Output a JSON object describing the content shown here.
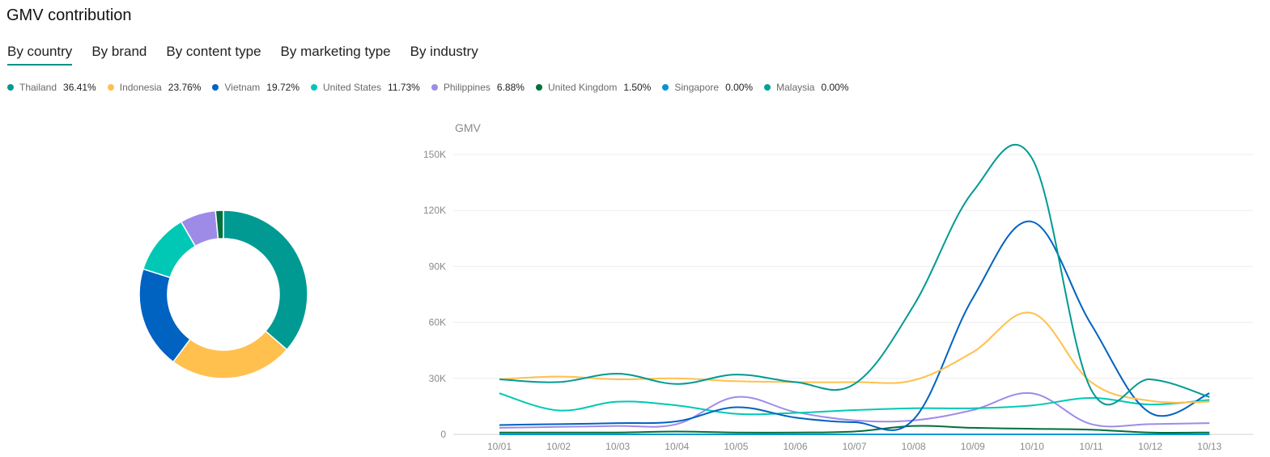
{
  "title": "GMV contribution",
  "tabs": [
    {
      "label": "By country",
      "active": true
    },
    {
      "label": "By brand",
      "active": false
    },
    {
      "label": "By content type",
      "active": false
    },
    {
      "label": "By marketing type",
      "active": false
    },
    {
      "label": "By industry",
      "active": false
    }
  ],
  "legend": [
    {
      "name": "Thailand",
      "pct": "36.41%",
      "color": "#009a93"
    },
    {
      "name": "Indonesia",
      "pct": "23.76%",
      "color": "#ffc04d"
    },
    {
      "name": "Vietnam",
      "pct": "19.72%",
      "color": "#0062c1"
    },
    {
      "name": "United States",
      "pct": "11.73%",
      "color": "#00c8b5"
    },
    {
      "name": "Philippines",
      "pct": "6.88%",
      "color": "#9e8be8"
    },
    {
      "name": "United Kingdom",
      "pct": "1.50%",
      "color": "#00703c"
    },
    {
      "name": "Singapore",
      "pct": "0.00%",
      "color": "#0095d6"
    },
    {
      "name": "Malaysia",
      "pct": "0.00%",
      "color": "#00a396"
    }
  ],
  "chart_data": [
    {
      "type": "pie",
      "donut": true,
      "labels": [
        "Thailand",
        "Indonesia",
        "Vietnam",
        "United States",
        "Philippines",
        "United Kingdom",
        "Singapore",
        "Malaysia"
      ],
      "values": [
        36.41,
        23.76,
        19.72,
        11.73,
        6.88,
        1.5,
        0.0,
        0.0
      ],
      "colors": [
        "#009a93",
        "#ffc04d",
        "#0062c1",
        "#00c8b5",
        "#9e8be8",
        "#00703c",
        "#0095d6",
        "#00a396"
      ]
    },
    {
      "type": "line",
      "ylabel": "GMV",
      "ylim": [
        0,
        150000
      ],
      "yticks": [
        0,
        30000,
        60000,
        90000,
        120000,
        150000
      ],
      "ytick_labels": [
        "0",
        "30K",
        "60K",
        "90K",
        "120K",
        "150K"
      ],
      "categories": [
        "10/01",
        "10/02",
        "10/03",
        "10/04",
        "10/05",
        "10/06",
        "10/07",
        "10/08",
        "10/09",
        "10/10",
        "10/11",
        "10/12",
        "10/13"
      ],
      "grid": true,
      "smooth": true,
      "series": [
        {
          "name": "Thailand",
          "color": "#009a93",
          "values": [
            29500,
            28000,
            32500,
            27000,
            32000,
            28000,
            27000,
            69000,
            130000,
            148000,
            24000,
            29500,
            20000
          ]
        },
        {
          "name": "Indonesia",
          "color": "#ffc04d",
          "values": [
            29500,
            31000,
            29500,
            30000,
            28500,
            28000,
            28000,
            29000,
            44000,
            65000,
            28000,
            18000,
            17500
          ]
        },
        {
          "name": "Vietnam",
          "color": "#0062c1",
          "values": [
            5000,
            5500,
            6000,
            7000,
            14500,
            9000,
            6500,
            8000,
            73000,
            114000,
            59000,
            11500,
            22000
          ]
        },
        {
          "name": "United States",
          "color": "#00c8b5",
          "values": [
            22000,
            12800,
            17500,
            15500,
            11000,
            11500,
            13000,
            14000,
            14000,
            15500,
            19500,
            16000,
            18500
          ]
        },
        {
          "name": "Philippines",
          "color": "#9e8be8",
          "values": [
            3500,
            4000,
            4500,
            5500,
            20000,
            12000,
            7500,
            7500,
            13000,
            22000,
            5500,
            5500,
            6000
          ]
        },
        {
          "name": "United Kingdom",
          "color": "#00703c",
          "values": [
            1000,
            1000,
            1000,
            1500,
            1000,
            1000,
            1500,
            4500,
            3500,
            3000,
            2500,
            1000,
            1000
          ]
        },
        {
          "name": "Singapore",
          "color": "#0095d6",
          "values": [
            0,
            0,
            0,
            0,
            0,
            0,
            0,
            0,
            0,
            0,
            0,
            0,
            0
          ]
        },
        {
          "name": "Malaysia",
          "color": "#00a396",
          "values": [
            0,
            0,
            0,
            0,
            0,
            0,
            0,
            0,
            0,
            0,
            0,
            0,
            0
          ]
        }
      ]
    }
  ]
}
